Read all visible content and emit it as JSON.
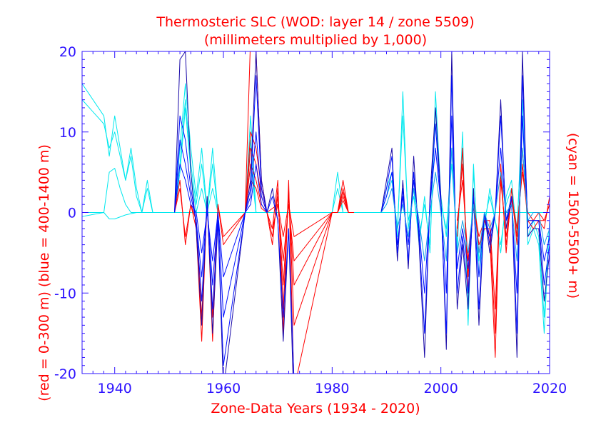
{
  "chart_data": {
    "type": "line",
    "title_line1": "Thermosteric SLC (WOD: layer 14 / zone 5509)",
    "title_line2": "(millimeters multiplied by 1,000)",
    "xlabel": "Zone-Data Years (1934 - 2020)",
    "ylabel_left_red": "(red = 0-300 m)",
    "ylabel_left_blue": "(blue = 400-1400 m)",
    "ylabel_right_red": "(cyan = 1500-5500+ m)",
    "xlim": [
      1934,
      2020
    ],
    "ylim": [
      -20,
      20
    ],
    "x_ticks": [
      "1940",
      "1960",
      "1980",
      "2000",
      "2020"
    ],
    "x_tick_values": [
      1940,
      1960,
      1980,
      2000,
      2020
    ],
    "y_ticks": [
      "20",
      "10",
      "0",
      "-10",
      "-20"
    ],
    "y_tick_values": [
      20,
      10,
      0,
      -10,
      -20
    ],
    "colors": {
      "axis": "#2e14ff",
      "red": "#ff0000",
      "blue": "#0010ff",
      "navy": "#1a0aa8",
      "cyan": "#00e8ee",
      "teal": "#1aa0e8"
    },
    "series": [
      {
        "name": "cyan-1",
        "color": "#00e8ee",
        "x": [
          1934,
          1938,
          1939,
          1940,
          1942,
          1943,
          1944,
          1945,
          1946,
          1947,
          1951,
          1952,
          1953,
          1954,
          1955,
          1956,
          1957,
          1958,
          1959,
          1960,
          1964,
          1965,
          1966,
          1967,
          1968,
          1969,
          1970,
          1971,
          1972,
          1973,
          1980,
          1981,
          1982,
          1983,
          1984,
          1989,
          1990,
          1991,
          1992,
          1993,
          1994,
          1995,
          1996,
          1997,
          1998,
          1999,
          2000,
          2001,
          2002,
          2003,
          2004,
          2005,
          2006,
          2007,
          2008,
          2009,
          2010,
          2011,
          2012,
          2013,
          2014,
          2015,
          2016,
          2017,
          2018,
          2019,
          2020
        ],
        "y": [
          16,
          12,
          7,
          12,
          4,
          8,
          3,
          0,
          4,
          0,
          0,
          8,
          16,
          8,
          2,
          8,
          0,
          8,
          0,
          0,
          0,
          12,
          0,
          0,
          0,
          0,
          0,
          0,
          0,
          0,
          0,
          5,
          0,
          0,
          0,
          0,
          3,
          5,
          -3,
          15,
          -2,
          3,
          -4,
          2,
          -5,
          15,
          2,
          -3,
          8,
          -5,
          10,
          -14,
          6,
          -8,
          -2,
          3,
          -1,
          -5,
          2,
          4,
          -3,
          14,
          -4,
          -2,
          -4,
          -15,
          -1
        ]
      },
      {
        "name": "cyan-2",
        "color": "#00e8ee",
        "x": [
          1934,
          1938,
          1939,
          1940,
          1942,
          1943,
          1944,
          1945,
          1946,
          1947,
          1951,
          1952,
          1953,
          1954,
          1955,
          1956,
          1957,
          1958,
          1959,
          1960,
          1964,
          1965,
          1966,
          1967,
          1968,
          1980,
          1981,
          1982,
          1989,
          1990,
          1991,
          1992,
          1993,
          1994,
          1995,
          1996,
          1997,
          1998,
          1999,
          2000,
          2001,
          2002,
          2003,
          2004,
          2005,
          2006,
          2007,
          2008,
          2009,
          2010,
          2011,
          2012,
          2013,
          2014,
          2015,
          2016,
          2017,
          2018,
          2019,
          2020
        ],
        "y": [
          14,
          11,
          8,
          10,
          4,
          7,
          2,
          0,
          3,
          0,
          0,
          6,
          14,
          6,
          1,
          6,
          0,
          6,
          0,
          0,
          0,
          9,
          0,
          0,
          0,
          0,
          3,
          0,
          0,
          2,
          4,
          -2,
          12,
          -1,
          2,
          -3,
          1,
          -4,
          13,
          1,
          -2,
          6,
          -4,
          8,
          -12,
          5,
          -6,
          -1,
          2,
          -1,
          -4,
          1,
          3,
          -2,
          12,
          -3,
          -1,
          -3,
          -13,
          -1
        ]
      },
      {
        "name": "cyan-3",
        "color": "#00e8ee",
        "x": [
          1934,
          1938,
          1939,
          1940,
          1941,
          1942,
          1943,
          1944,
          1945,
          1946,
          1947,
          1951,
          1952,
          1953,
          1954,
          1955,
          1956,
          1957,
          1958,
          1959,
          1960,
          1964,
          1965,
          1966
        ],
        "y": [
          0,
          0,
          5,
          5.5,
          3,
          1,
          0,
          0,
          0,
          0,
          0,
          0,
          5,
          13,
          5,
          0,
          3,
          0,
          3,
          0,
          0,
          0,
          6,
          0
        ]
      },
      {
        "name": "cyan-4",
        "color": "#00e8ee",
        "x": [
          1934,
          1938,
          1939,
          1940,
          1942,
          1944,
          1946,
          1947,
          1951,
          1960,
          1970,
          1980,
          1984,
          1989,
          2020
        ],
        "y": [
          -0.5,
          0,
          -0.8,
          -0.8,
          -0.3,
          0,
          0,
          0,
          0,
          0,
          0,
          0,
          0,
          0,
          0
        ]
      },
      {
        "name": "red-1",
        "color": "#ff0000",
        "x": [
          1951,
          1952,
          1953,
          1954,
          1955,
          1956,
          1957,
          1958,
          1959,
          1960,
          1964,
          1965,
          1966,
          1967,
          1968,
          1969,
          1970,
          1971,
          1972,
          1973,
          1980,
          1981,
          1982,
          1983,
          1984
        ],
        "y": [
          0,
          4,
          -4,
          1,
          -2,
          -16,
          2,
          -16,
          1,
          -4,
          0,
          22,
          20,
          4,
          0,
          -2,
          4,
          -15,
          4,
          -22,
          0,
          0,
          4,
          0,
          0
        ]
      },
      {
        "name": "red-2",
        "color": "#ff0000",
        "x": [
          1951,
          1952,
          1953,
          1954,
          1955,
          1956,
          1957,
          1958,
          1959,
          1960,
          1964,
          1965,
          1966,
          1967,
          1968,
          1969,
          1970,
          1971,
          1972,
          1973,
          1980,
          1981,
          1982,
          1983,
          1984
        ],
        "y": [
          0,
          3,
          -3,
          1,
          -1,
          -13,
          1,
          -13,
          1,
          -3,
          0,
          10,
          8,
          3,
          0,
          -4,
          3,
          -12,
          3,
          -14,
          0,
          0,
          3,
          0,
          0
        ]
      },
      {
        "name": "red-3",
        "color": "#ff0000",
        "x": [
          1964,
          1965,
          1966,
          1967,
          1968,
          1969,
          1970,
          1971,
          1972,
          1973,
          1980,
          1981,
          1982,
          1983,
          1984
        ],
        "y": [
          0,
          8,
          6,
          2,
          0,
          -3,
          2,
          -9,
          2,
          -9,
          0,
          0,
          2.5,
          0,
          0
        ]
      },
      {
        "name": "red-4",
        "color": "#ff0000",
        "x": [
          1964,
          1965,
          1966,
          1967,
          1968,
          1969,
          1970,
          1971,
          1972,
          1973,
          1980,
          1981,
          1982,
          1983,
          1984
        ],
        "y": [
          0,
          6,
          4,
          1,
          0,
          -2,
          1,
          -6,
          1,
          -6,
          0,
          0,
          2,
          0,
          0
        ]
      },
      {
        "name": "red-5",
        "color": "#ff0000",
        "x": [
          1964,
          1965,
          1966,
          1967,
          1968,
          1970,
          1971,
          1972,
          1973,
          1980,
          1981,
          1982,
          1983,
          1984
        ],
        "y": [
          0,
          4,
          3,
          0.5,
          0,
          1,
          -3,
          1,
          -3,
          0,
          0,
          1.5,
          0,
          0
        ]
      },
      {
        "name": "red-6",
        "color": "#ff0000",
        "x": [
          2003,
          2004,
          2005,
          2006,
          2007,
          2008,
          2009,
          2010,
          2011,
          2012,
          2013,
          2014,
          2015,
          2016,
          2017,
          2018,
          2019,
          2020
        ],
        "y": [
          -3,
          8,
          -10,
          2,
          -5,
          -1,
          -3,
          -18,
          6,
          -5,
          3,
          -4,
          8,
          -1,
          -2,
          -1,
          -2,
          2
        ]
      },
      {
        "name": "red-7",
        "color": "#ff0000",
        "x": [
          2003,
          2004,
          2005,
          2006,
          2007,
          2008,
          2009,
          2010,
          2011,
          2012,
          2013,
          2014,
          2015,
          2016,
          2017,
          2018,
          2019,
          2020
        ],
        "y": [
          -2,
          6,
          -8,
          1,
          -4,
          -2,
          -2,
          -15,
          5,
          -4,
          2,
          -3,
          6,
          -1,
          -1,
          -1,
          -1,
          1
        ]
      },
      {
        "name": "red-8",
        "color": "#ff0000",
        "x": [
          2003,
          2004,
          2005,
          2006,
          2007,
          2008,
          2009,
          2010,
          2011,
          2012,
          2013,
          2014,
          2015,
          2016,
          2017,
          2018,
          2019,
          2020
        ],
        "y": [
          -1,
          4,
          -6,
          1,
          -3,
          -1,
          -1,
          -12,
          4,
          -3,
          2,
          -2,
          5,
          0,
          -1,
          0,
          -1,
          1
        ]
      },
      {
        "name": "navy-1",
        "color": "#1a0aa8",
        "x": [
          1951,
          1952,
          1953,
          1954,
          1955,
          1956,
          1957,
          1958,
          1959,
          1960,
          1964,
          1965,
          1966,
          1967,
          1968,
          1969,
          1970,
          1971,
          1972,
          1973
        ],
        "y": [
          0,
          19,
          20,
          5,
          -2,
          -14,
          2,
          -15,
          -1,
          -22,
          0,
          4,
          20,
          4,
          0,
          3,
          -1,
          -16,
          -2,
          -25
        ]
      },
      {
        "name": "navy-2",
        "color": "#1a0aa8",
        "x": [
          1989,
          1990,
          1991,
          1992,
          1993,
          1994,
          1995,
          1996,
          1997,
          1998,
          1999,
          2000,
          2001,
          2002,
          2003,
          2004,
          2005,
          2006,
          2007,
          2008,
          2009,
          2010,
          2011,
          2012,
          2013,
          2014,
          2015,
          2016,
          2017,
          2018,
          2019,
          2020
        ],
        "y": [
          0,
          4,
          8,
          -6,
          4,
          -7,
          7,
          -4,
          -18,
          2,
          13,
          2,
          -17,
          20,
          -12,
          -4,
          -12,
          3,
          -14,
          0,
          -5,
          0,
          14,
          -2,
          2,
          -18,
          20,
          -3,
          -2,
          -2,
          -11,
          -5
        ]
      },
      {
        "name": "blue-1",
        "color": "#0010ff",
        "x": [
          1951,
          1952,
          1953,
          1954,
          1955,
          1956,
          1957,
          1958,
          1959,
          1960,
          1964,
          1965,
          1966,
          1967,
          1968,
          1969,
          1970,
          1971,
          1972,
          1973
        ],
        "y": [
          0,
          12,
          9,
          3,
          -1,
          -11,
          1,
          -12,
          -1,
          -19,
          0,
          3,
          17,
          3,
          0,
          2,
          -1,
          -13,
          -2,
          -21
        ]
      },
      {
        "name": "blue-2",
        "color": "#0010ff",
        "x": [
          1951,
          1952,
          1953,
          1954,
          1955,
          1956,
          1957,
          1958,
          1959,
          1960,
          1964,
          1965,
          1966,
          1967,
          1968
        ],
        "y": [
          0,
          9,
          6,
          2,
          -1,
          -8,
          1,
          -9,
          0,
          -13,
          0,
          2,
          10,
          2,
          0
        ]
      },
      {
        "name": "blue-3",
        "color": "#0010ff",
        "x": [
          1951,
          1952,
          1953,
          1954,
          1955,
          1956,
          1957,
          1958,
          1959,
          1960,
          1964,
          1965,
          1966,
          1967,
          1968
        ],
        "y": [
          0,
          6,
          4,
          1,
          0,
          -5,
          0,
          -6,
          0,
          -8,
          0,
          1,
          6,
          1,
          0
        ]
      },
      {
        "name": "blue-4",
        "color": "#0010ff",
        "x": [
          1989,
          1990,
          1991,
          1992,
          1993,
          1994,
          1995,
          1996,
          1997,
          1998,
          1999,
          2000,
          2001,
          2002,
          2003,
          2004,
          2005,
          2006,
          2007,
          2008,
          2009,
          2010,
          2011,
          2012,
          2013,
          2014,
          2015,
          2016,
          2017,
          2018,
          2019,
          2020
        ],
        "y": [
          0,
          3,
          7,
          -5,
          3,
          -6,
          5,
          -3,
          -15,
          1,
          11,
          1,
          -15,
          17,
          -10,
          -3,
          -10,
          2,
          -12,
          0,
          -4,
          0,
          12,
          -1,
          2,
          -15,
          17,
          -2,
          -1,
          -1,
          -9,
          -4
        ]
      },
      {
        "name": "blue-5",
        "color": "#0010ff",
        "x": [
          1989,
          1990,
          1991,
          1992,
          1993,
          1994,
          1995,
          1996,
          1997,
          1998,
          1999,
          2000,
          2001,
          2002,
          2003,
          2004,
          2005,
          2006,
          2007,
          2008,
          2009,
          2010,
          2011,
          2012,
          2013,
          2014,
          2015,
          2016,
          2017,
          2018,
          2019,
          2020
        ],
        "y": [
          0,
          2,
          5,
          -4,
          2,
          -4,
          4,
          -2,
          -10,
          1,
          8,
          1,
          -10,
          12,
          -7,
          -2,
          -7,
          1,
          -8,
          0,
          -3,
          0,
          8,
          -1,
          1,
          -10,
          12,
          -1,
          -1,
          -1,
          -6,
          -3
        ]
      },
      {
        "name": "teal-1",
        "color": "#1aa0e8",
        "x": [
          1989,
          1990,
          1991,
          1992,
          1993,
          1994,
          1995,
          1996,
          1997,
          1998,
          1999,
          2000,
          2001,
          2002,
          2003,
          2004,
          2005,
          2006,
          2007,
          2008,
          2009,
          2010,
          2011,
          2012,
          2013,
          2014,
          2015,
          2016,
          2017,
          2018,
          2019,
          2020
        ],
        "y": [
          0,
          1,
          3,
          -2,
          1,
          -3,
          3,
          -1,
          -6,
          0,
          5,
          0,
          -6,
          8,
          -5,
          -1,
          -5,
          1,
          -5,
          0,
          -2,
          0,
          5,
          0,
          1,
          -6,
          8,
          -1,
          0,
          0,
          -4,
          -2
        ]
      }
    ]
  }
}
